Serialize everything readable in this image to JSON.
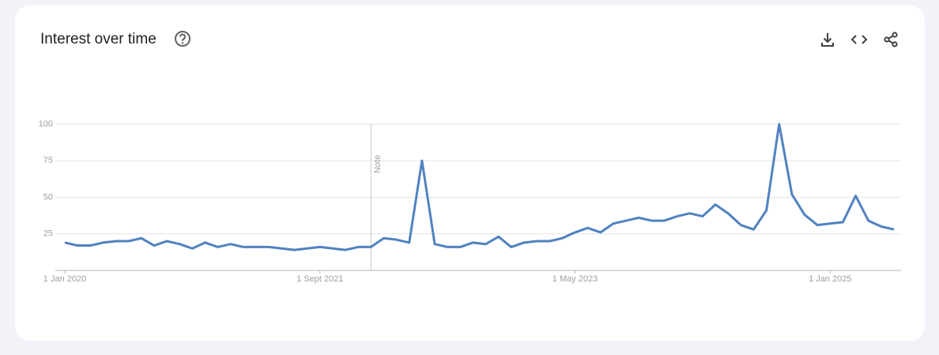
{
  "chart_data": {
    "type": "line",
    "title": "Interest over time",
    "x": [
      "2020-01-01",
      "2020-02-01",
      "2020-03-01",
      "2020-04-01",
      "2020-05-01",
      "2020-06-01",
      "2020-07-01",
      "2020-08-01",
      "2020-09-01",
      "2020-10-01",
      "2020-11-01",
      "2020-12-01",
      "2021-01-01",
      "2021-02-01",
      "2021-03-01",
      "2021-04-01",
      "2021-05-01",
      "2021-06-01",
      "2021-07-01",
      "2021-08-01",
      "2021-09-01",
      "2021-10-01",
      "2021-11-01",
      "2021-12-01",
      "2022-01-01",
      "2022-02-01",
      "2022-03-01",
      "2022-04-01",
      "2022-05-01",
      "2022-06-01",
      "2022-07-01",
      "2022-08-01",
      "2022-09-01",
      "2022-10-01",
      "2022-11-01",
      "2022-12-01",
      "2023-01-01",
      "2023-02-01",
      "2023-03-01",
      "2023-04-01",
      "2023-05-01",
      "2023-06-01",
      "2023-07-01",
      "2023-08-01",
      "2023-09-01",
      "2023-10-01",
      "2023-11-01",
      "2023-12-01",
      "2024-01-01",
      "2024-02-01",
      "2024-03-01",
      "2024-04-01",
      "2024-05-01",
      "2024-06-01",
      "2024-07-01",
      "2024-08-01",
      "2024-09-01",
      "2024-10-01",
      "2024-11-01",
      "2024-12-01",
      "2025-01-01",
      "2025-02-01",
      "2025-03-01",
      "2025-04-01",
      "2025-05-01",
      "2025-06-01"
    ],
    "series": [
      {
        "color": "#5082c0",
        "values": [
          19,
          17,
          17,
          19,
          20,
          20,
          22,
          17,
          20,
          18,
          15,
          19,
          16,
          18,
          16,
          16,
          16,
          15,
          14,
          15,
          16,
          15,
          14,
          16,
          16,
          22,
          21,
          19,
          75,
          18,
          16,
          16,
          19,
          18,
          23,
          16,
          19,
          20,
          20,
          22,
          26,
          29,
          26,
          32,
          34,
          36,
          34,
          34,
          37,
          39,
          37,
          45,
          39,
          31,
          28,
          41,
          100,
          52,
          38,
          31,
          32,
          33,
          51,
          34,
          30,
          28
        ]
      }
    ],
    "xlim": [
      "2020-01-01",
      "2025-06-01"
    ],
    "xticks": [
      {
        "value": "2020-01-01",
        "label": "1 Jan 2020"
      },
      {
        "value": "2021-09-01",
        "label": "1 Sept 2021"
      },
      {
        "value": "2023-05-01",
        "label": "1 May 2023"
      },
      {
        "value": "2025-01-01",
        "label": "1 Jan 2025"
      }
    ],
    "ylim": [
      0,
      100
    ],
    "yticks": [
      25,
      50,
      75,
      100
    ],
    "grid": true,
    "annotations": [
      {
        "x": "2022-01-01",
        "label": "Note"
      }
    ]
  }
}
